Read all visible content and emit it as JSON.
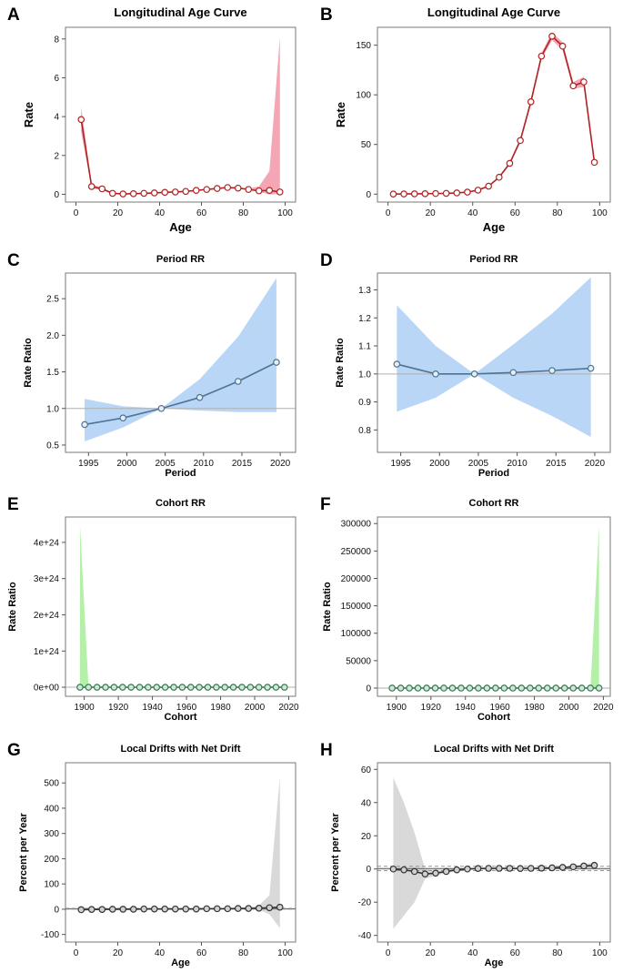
{
  "figure": {
    "panels": [
      "A",
      "B",
      "C",
      "D",
      "E",
      "F",
      "G",
      "H"
    ]
  },
  "chart_data": [
    {
      "panel": "A",
      "type": "line",
      "title": "Longitudinal Age Curve",
      "xlabel": "Age",
      "ylabel": "Rate",
      "xlim": [
        -5,
        105
      ],
      "ylim": [
        -0.4,
        8.6
      ],
      "xticks": [
        0,
        20,
        40,
        60,
        80,
        100
      ],
      "yticks": [
        0,
        2,
        4,
        6,
        8
      ],
      "x": [
        2.5,
        7.5,
        12.5,
        17.5,
        22.5,
        27.5,
        32.5,
        37.5,
        42.5,
        47.5,
        52.5,
        57.5,
        62.5,
        67.5,
        72.5,
        77.5,
        82.5,
        87.5,
        92.5,
        97.5
      ],
      "values": [
        3.85,
        0.4,
        0.28,
        0.05,
        0.02,
        0.03,
        0.05,
        0.07,
        0.1,
        0.12,
        0.15,
        0.2,
        0.25,
        0.3,
        0.35,
        0.32,
        0.25,
        0.18,
        0.2,
        0.12
      ],
      "lower": [
        3.2,
        0.32,
        0.22,
        0.02,
        0.0,
        0.01,
        0.03,
        0.05,
        0.08,
        0.1,
        0.13,
        0.17,
        0.22,
        0.27,
        0.32,
        0.29,
        0.22,
        0.12,
        0.0,
        0.0
      ],
      "upper": [
        4.5,
        0.5,
        0.35,
        0.08,
        0.05,
        0.05,
        0.07,
        0.09,
        0.12,
        0.15,
        0.18,
        0.23,
        0.28,
        0.33,
        0.38,
        0.36,
        0.3,
        0.4,
        1.2,
        8.1
      ],
      "line_color": "#b22222",
      "band_color": "#f4a6b4",
      "marker_fill": "#ffffff",
      "refline": null
    },
    {
      "panel": "B",
      "type": "line",
      "title": "Longitudinal Age Curve",
      "xlabel": "Age",
      "ylabel": "Rate",
      "xlim": [
        -5,
        105
      ],
      "ylim": [
        -8,
        168
      ],
      "xticks": [
        0,
        20,
        40,
        60,
        80,
        100
      ],
      "yticks": [
        0,
        50,
        100,
        150
      ],
      "x": [
        2.5,
        7.5,
        12.5,
        17.5,
        22.5,
        27.5,
        32.5,
        37.5,
        42.5,
        47.5,
        52.5,
        57.5,
        62.5,
        67.5,
        72.5,
        77.5,
        82.5,
        87.5,
        92.5,
        97.5
      ],
      "values": [
        0.1,
        0.2,
        0.3,
        0.4,
        0.6,
        0.8,
        1.2,
        2,
        4,
        8,
        17,
        31,
        54,
        93,
        139,
        159,
        149,
        109,
        113,
        32
      ],
      "lower": [
        0,
        0.1,
        0.2,
        0.3,
        0.5,
        0.7,
        1.0,
        1.8,
        3.6,
        7.5,
        16,
        29.5,
        52,
        90,
        136,
        155,
        145,
        106,
        108,
        30
      ],
      "upper": [
        0.2,
        0.3,
        0.4,
        0.5,
        0.8,
        1.0,
        1.5,
        2.3,
        4.5,
        8.6,
        18,
        32.5,
        56,
        96,
        142,
        163,
        153,
        113,
        118,
        34
      ],
      "line_color": "#b22222",
      "band_color": "#f4a6b4",
      "marker_fill": "#ffffff",
      "refline": null
    },
    {
      "panel": "C",
      "type": "line",
      "title": "Period RR",
      "xlabel": "Period",
      "ylabel": "Rate Ratio",
      "xlim": [
        1992,
        2022
      ],
      "ylim": [
        0.4,
        2.85
      ],
      "xticks": [
        1995,
        2000,
        2005,
        2010,
        2015,
        2020
      ],
      "yticks": [
        0.5,
        1.0,
        1.5,
        2.0,
        2.5
      ],
      "ytick_labels": [
        "0.5",
        "1.0",
        "1.5",
        "2.0",
        "2.5"
      ],
      "x": [
        1994.5,
        1999.5,
        2004.5,
        2009.5,
        2014.5,
        2019.5
      ],
      "values": [
        0.78,
        0.87,
        1.0,
        1.15,
        1.37,
        1.63
      ],
      "lower": [
        0.55,
        0.74,
        1.0,
        0.97,
        0.95,
        0.95
      ],
      "upper": [
        1.13,
        1.03,
        1.0,
        1.4,
        1.98,
        2.78
      ],
      "line_color": "#4f7493",
      "band_color": "#b9d6f7",
      "marker_fill": "#e8eef4",
      "refline": 1.0
    },
    {
      "panel": "D",
      "type": "line",
      "title": "Period RR",
      "xlabel": "Period",
      "ylabel": "Rate Ratio",
      "xlim": [
        1992,
        2022
      ],
      "ylim": [
        0.72,
        1.36
      ],
      "xticks": [
        1995,
        2000,
        2005,
        2010,
        2015,
        2020
      ],
      "yticks": [
        0.8,
        0.9,
        1.0,
        1.1,
        1.2,
        1.3
      ],
      "ytick_labels": [
        "0.8",
        "0.9",
        "1.0",
        "1.1",
        "1.2",
        "1.3"
      ],
      "x": [
        1994.5,
        1999.5,
        2004.5,
        2009.5,
        2014.5,
        2019.5
      ],
      "values": [
        1.035,
        1.0,
        1.0,
        1.005,
        1.012,
        1.02
      ],
      "lower": [
        0.865,
        0.915,
        1.0,
        0.915,
        0.85,
        0.775
      ],
      "upper": [
        1.245,
        1.1,
        1.0,
        1.105,
        1.215,
        1.345
      ],
      "line_color": "#4f7493",
      "band_color": "#b9d6f7",
      "marker_fill": "#e8eef4",
      "refline": 1.0
    },
    {
      "panel": "E",
      "type": "line",
      "title": "Cohort RR",
      "xlabel": "Cohort",
      "ylabel": "Rate Ratio",
      "xlim": [
        1889,
        2024
      ],
      "ylim": [
        -0.25,
        4.7
      ],
      "xticks": [
        1900,
        1920,
        1940,
        1960,
        1980,
        2000,
        2020
      ],
      "yticks": [
        0,
        1,
        2,
        3,
        4
      ],
      "ytick_labels": [
        "0e+00",
        "1e+24",
        "2e+24",
        "3e+24",
        "4e+24"
      ],
      "x": [
        1897.5,
        1902.5,
        1907.5,
        1912.5,
        1917.5,
        1922.5,
        1927.5,
        1932.5,
        1937.5,
        1942.5,
        1947.5,
        1952.5,
        1957.5,
        1962.5,
        1967.5,
        1972.5,
        1977.5,
        1982.5,
        1987.5,
        1992.5,
        1997.5,
        2002.5,
        2007.5,
        2012.5,
        2017.5
      ],
      "values": [
        0,
        0,
        0,
        0,
        0,
        0,
        0,
        0,
        0,
        0,
        0,
        0,
        0,
        0,
        0,
        0,
        0,
        0,
        0,
        0,
        0,
        0,
        0,
        0,
        0
      ],
      "lower": [
        0,
        0,
        0,
        0,
        0,
        0,
        0,
        0,
        0,
        0,
        0,
        0,
        0,
        0,
        0,
        0,
        0,
        0,
        0,
        0,
        0,
        0,
        0,
        0,
        0
      ],
      "upper": [
        4.5,
        0,
        0,
        0,
        0,
        0,
        0,
        0,
        0,
        0,
        0,
        0,
        0,
        0,
        0,
        0,
        0,
        0,
        0,
        0,
        0,
        0,
        0,
        0,
        0
      ],
      "line_color": "#3c7a55",
      "band_color": "#b4f0a8",
      "marker_fill": "#cfe8d8",
      "refline": 0
    },
    {
      "panel": "F",
      "type": "line",
      "title": "Cohort RR",
      "xlabel": "Cohort",
      "ylabel": "Rate Ratio",
      "xlim": [
        1889,
        2024
      ],
      "ylim": [
        -15000,
        312000
      ],
      "xticks": [
        1900,
        1920,
        1940,
        1960,
        1980,
        2000,
        2020
      ],
      "yticks": [
        0,
        50000,
        100000,
        150000,
        200000,
        250000,
        300000
      ],
      "ytick_labels": [
        "0",
        "50000",
        "100000",
        "150000",
        "200000",
        "250000",
        "300000"
      ],
      "x": [
        1897.5,
        1902.5,
        1907.5,
        1912.5,
        1917.5,
        1922.5,
        1927.5,
        1932.5,
        1937.5,
        1942.5,
        1947.5,
        1952.5,
        1957.5,
        1962.5,
        1967.5,
        1972.5,
        1977.5,
        1982.5,
        1987.5,
        1992.5,
        1997.5,
        2002.5,
        2007.5,
        2012.5,
        2017.5
      ],
      "values": [
        0,
        0,
        0,
        0,
        0,
        0,
        0,
        0,
        0,
        0,
        0,
        0,
        0,
        0,
        0,
        0,
        0,
        0,
        0,
        0,
        0,
        0,
        0,
        0,
        0
      ],
      "lower": [
        0,
        0,
        0,
        0,
        0,
        0,
        0,
        0,
        0,
        0,
        0,
        0,
        0,
        0,
        0,
        0,
        0,
        0,
        0,
        0,
        0,
        0,
        0,
        0,
        0
      ],
      "upper": [
        0,
        0,
        0,
        0,
        0,
        0,
        0,
        0,
        0,
        0,
        0,
        0,
        0,
        0,
        0,
        0,
        0,
        0,
        0,
        0,
        0,
        0,
        0,
        0,
        295000
      ],
      "line_color": "#3c7a55",
      "band_color": "#b4f0a8",
      "marker_fill": "#cfe8d8",
      "refline": 0
    },
    {
      "panel": "G",
      "type": "line",
      "title": "Local Drifts with Net Drift",
      "xlabel": "Age",
      "ylabel": "Percent per Year",
      "xlim": [
        -5,
        105
      ],
      "ylim": [
        -130,
        580
      ],
      "xticks": [
        0,
        20,
        40,
        60,
        80,
        100
      ],
      "yticks": [
        -100,
        0,
        100,
        200,
        300,
        400,
        500
      ],
      "x": [
        2.5,
        7.5,
        12.5,
        17.5,
        22.5,
        27.5,
        32.5,
        37.5,
        42.5,
        47.5,
        52.5,
        57.5,
        62.5,
        67.5,
        72.5,
        77.5,
        82.5,
        87.5,
        92.5,
        97.5
      ],
      "values": [
        -2,
        -1,
        -1,
        0,
        0,
        0,
        1,
        1,
        1,
        1,
        1,
        1,
        2,
        2,
        2,
        3,
        3,
        4,
        6,
        8
      ],
      "lower": [
        -6,
        -4,
        -4,
        -3,
        -3,
        -2,
        -2,
        -1,
        -1,
        -1,
        -1,
        -1,
        0,
        0,
        0,
        0,
        0,
        -2,
        -20,
        -75
      ],
      "upper": [
        2,
        2,
        2,
        3,
        3,
        2,
        3,
        3,
        3,
        3,
        3,
        3,
        4,
        4,
        4,
        6,
        8,
        15,
        55,
        525
      ],
      "net_drift": 2.0,
      "net_drift_ci": [
        0.5,
        3.5
      ],
      "line_color": "#333333",
      "band_color": "#d9d9d9",
      "marker_fill": "#d0d0d0",
      "refline": 0
    },
    {
      "panel": "H",
      "type": "line",
      "title": "Local Drifts with Net Drift",
      "xlabel": "Age",
      "ylabel": "Percent per Year",
      "xlim": [
        -5,
        105
      ],
      "ylim": [
        -44,
        64
      ],
      "xticks": [
        0,
        20,
        40,
        60,
        80,
        100
      ],
      "yticks": [
        -40,
        -20,
        0,
        20,
        40,
        60
      ],
      "x": [
        2.5,
        7.5,
        12.5,
        17.5,
        22.5,
        27.5,
        32.5,
        37.5,
        42.5,
        47.5,
        52.5,
        57.5,
        62.5,
        67.5,
        72.5,
        77.5,
        82.5,
        87.5,
        92.5,
        97.5
      ],
      "values": [
        0,
        -0.5,
        -1.5,
        -3,
        -2.5,
        -1.5,
        -0.5,
        0,
        0.3,
        0.4,
        0.4,
        0.4,
        0.3,
        0.4,
        0.5,
        0.7,
        1.0,
        1.3,
        1.8,
        2.2
      ],
      "lower": [
        -36,
        -28,
        -20,
        -6,
        -4,
        -2.5,
        -1.2,
        -0.4,
        0,
        0.1,
        0.1,
        0.1,
        0,
        0.1,
        0.2,
        0.3,
        0.5,
        0.6,
        0.8,
        0.5
      ],
      "upper": [
        55,
        40,
        22,
        0,
        -1,
        -0.5,
        0.2,
        0.4,
        0.6,
        0.7,
        0.7,
        0.7,
        0.6,
        0.7,
        0.8,
        1.1,
        1.5,
        2.0,
        3.0,
        4.0
      ],
      "net_drift": 0.3,
      "net_drift_ci": [
        -1.0,
        1.6
      ],
      "line_color": "#333333",
      "band_color": "#d9d9d9",
      "marker_fill": "#d0d0d0",
      "refline": 0
    }
  ]
}
